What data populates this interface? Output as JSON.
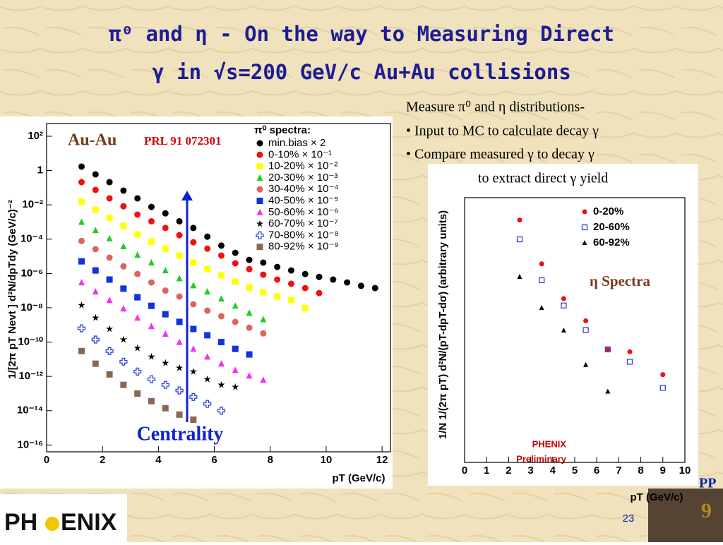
{
  "slide": {
    "title": [
      "π⁰ and η - On the way to Measuring Direct",
      "γ in √s=200 GeV/c Au+Au collisions"
    ],
    "bullets": [
      "Measure π⁰ and η distributions-",
      "•  Input to MC to calculate decay γ",
      "• Compare measured γ to decay γ",
      "to extract direct γ yield"
    ],
    "page_number": "23",
    "logo": [
      "PH",
      "ENIX"
    ],
    "corner": [
      "PP",
      "9"
    ]
  },
  "chart_data": [
    {
      "type": "scatter",
      "annotations": [
        "Au-Au",
        "PRL 91 072301",
        "Centrality"
      ],
      "legend_title": "π⁰ spectra:",
      "xlabel": "pT (GeV/c)",
      "ylabel": "1/[2π pT Nevt ] d²N/dpTdy (GeV/c)⁻²",
      "xlim": [
        0,
        12.3
      ],
      "ylim": [
        4e-17,
        550
      ],
      "ylog": true,
      "xticks": [
        0,
        2,
        4,
        6,
        8,
        10,
        12
      ],
      "yticks": [
        {
          "value": 100,
          "label": "10²"
        },
        1,
        {
          "value": 0.01,
          "label": "10⁻²"
        },
        {
          "value": 0.0001,
          "label": "10⁻⁴"
        },
        {
          "value": 1e-06,
          "label": "10⁻⁶"
        },
        {
          "value": 1e-08,
          "label": "10⁻⁸"
        },
        {
          "value": 1e-10,
          "label": "10⁻¹⁰"
        },
        {
          "value": 1e-12,
          "label": "10⁻¹²"
        },
        {
          "value": 1e-14,
          "label": "10⁻¹⁴"
        },
        {
          "value": 1e-16,
          "label": "10⁻¹⁶"
        }
      ],
      "series": [
        {
          "name": "min.bias × 2",
          "color": "#000000",
          "marker": "circle",
          "x": [
            1.25,
            1.75,
            2.25,
            2.75,
            3.25,
            3.75,
            4.25,
            4.75,
            5.25,
            5.75,
            6.25,
            6.75,
            7.25,
            7.75,
            8.25,
            8.75,
            9.25,
            9.75,
            10.25,
            10.75,
            11.25,
            11.75
          ],
          "values": [
            1.7,
            0.6,
            0.21,
            0.068,
            0.024,
            0.0076,
            0.0032,
            0.0011,
            0.00045,
            0.00014,
            4.2e-05,
            1.6e-05,
            6.2e-06,
            4.3e-06,
            2.4e-06,
            1.5e-06,
            9.3e-07,
            6.3e-07,
            4.4e-07,
            3e-07,
            1.9e-07,
            1.4e-07
          ]
        },
        {
          "name": "0-10% × 10⁻¹",
          "color": "#ee1111",
          "marker": "circle",
          "x": [
            1.25,
            1.75,
            2.25,
            2.75,
            3.25,
            3.75,
            4.25,
            4.75,
            5.25,
            5.75,
            6.25,
            6.75,
            7.25,
            7.75,
            8.25,
            8.75,
            9.25,
            9.75
          ],
          "values": [
            0.21,
            0.074,
            0.024,
            0.0083,
            0.0027,
            0.0011,
            0.00045,
            0.00017,
            6.6e-05,
            2.8e-05,
            1.1e-05,
            3.9e-06,
            1.8e-06,
            8.5e-07,
            4.4e-07,
            2.5e-07,
            1.4e-07,
            7.2e-08
          ]
        },
        {
          "name": "10-20% × 10⁻²",
          "color": "#ffff00",
          "marker": "square",
          "x": [
            1.25,
            1.75,
            2.25,
            2.75,
            3.25,
            3.75,
            4.25,
            4.75,
            5.25,
            5.75,
            6.25,
            6.75,
            7.25,
            7.75,
            8.25,
            8.75,
            9.25
          ],
          "values": [
            0.015,
            0.0052,
            0.0017,
            0.00059,
            0.00019,
            7.2e-05,
            2.8e-05,
            1.1e-05,
            4.3e-06,
            1.8e-06,
            7.8e-07,
            3.3e-07,
            1.5e-07,
            7.9e-08,
            4.5e-08,
            2.8e-08,
            9.8e-09
          ]
        },
        {
          "name": "20-30% × 10⁻³",
          "color": "#22cc22",
          "marker": "triangle",
          "x": [
            1.25,
            1.75,
            2.25,
            2.75,
            3.25,
            3.75,
            4.25,
            4.75,
            5.25,
            5.75,
            6.25,
            6.75,
            7.25,
            7.75
          ],
          "values": [
            0.001,
            0.00033,
            0.00011,
            3.8e-05,
            1.2e-05,
            4.3e-06,
            1.5e-06,
            5.2e-07,
            2e-07,
            8.7e-08,
            3.4e-08,
            1.3e-08,
            5e-09,
            2.1e-09
          ]
        },
        {
          "name": "30-40% × 10⁻⁴",
          "color": "#d9665e",
          "marker": "circle",
          "x": [
            1.25,
            1.75,
            2.25,
            2.75,
            3.25,
            3.75,
            4.25,
            4.75,
            5.25,
            5.75,
            6.25,
            6.75,
            7.25,
            7.75
          ],
          "values": [
            7.9e-05,
            2.6e-05,
            8.3e-06,
            2.6e-06,
            9.3e-07,
            3e-07,
            1e-07,
            4.5e-08,
            1.6e-08,
            6.8e-09,
            3.2e-09,
            1.5e-09,
            6.9e-10,
            3.2e-10
          ]
        },
        {
          "name": "40-50% × 10⁻⁵",
          "color": "#1133dd",
          "marker": "square",
          "x": [
            1.25,
            1.75,
            2.25,
            2.75,
            3.25,
            3.75,
            4.25,
            4.75,
            5.25,
            5.75,
            6.25,
            6.75,
            7.25
          ],
          "values": [
            5.1e-06,
            1.5e-06,
            4.4e-07,
            1.3e-07,
            4.1e-08,
            1.3e-08,
            4.2e-09,
            1.5e-09,
            5.8e-10,
            2.5e-10,
            1e-10,
            4e-11,
            1.9e-11
          ]
        },
        {
          "name": "50-60% × 10⁻⁶",
          "color": "#ee33ee",
          "marker": "triangle",
          "x": [
            1.25,
            1.75,
            2.25,
            2.75,
            3.25,
            3.75,
            4.25,
            4.75,
            5.25,
            5.75,
            6.25,
            6.75,
            7.25,
            7.75
          ],
          "values": [
            3e-07,
            8.7e-08,
            2.8e-08,
            8.9e-09,
            2.6e-09,
            8.3e-10,
            3e-10,
            1e-10,
            4e-11,
            1.4e-11,
            5.5e-12,
            2.3e-12,
            1.1e-12,
            6.2e-13
          ]
        },
        {
          "name": "60-70% × 10⁻⁷",
          "color": "#000000",
          "marker": "star",
          "x": [
            1.25,
            1.75,
            2.25,
            2.75,
            3.25,
            3.75,
            4.25,
            4.75,
            5.25,
            5.75,
            6.25,
            6.75
          ],
          "values": [
            1.4e-08,
            2.6e-09,
            5.8e-10,
            1.4e-10,
            4.4e-11,
            1.4e-11,
            6e-12,
            3.1e-12,
            1.9e-12,
            6.8e-13,
            3.2e-13,
            2.4e-13
          ]
        },
        {
          "name": "70-80% × 10⁻⁸",
          "color": "#3344cc",
          "marker": "cross",
          "x": [
            1.25,
            1.75,
            2.25,
            2.75,
            3.25,
            3.75,
            4.25,
            4.75,
            5.25,
            5.75,
            6.25
          ],
          "values": [
            6.3e-10,
            1.4e-10,
            3e-11,
            7.2e-12,
            1.9e-12,
            6.8e-13,
            3.2e-13,
            1.5e-13,
            6.3e-14,
            2.5e-14,
            1e-14
          ]
        },
        {
          "name": "80-92% × 10⁻⁹",
          "color": "#8b6655",
          "marker": "square",
          "x": [
            1.25,
            1.75,
            2.25,
            2.75,
            3.25,
            3.75,
            4.25,
            4.75,
            5.25
          ],
          "values": [
            3e-11,
            5.5e-12,
            1.3e-12,
            3.2e-13,
            1e-13,
            3.6e-14,
            1.4e-14,
            5.9e-15,
            3e-15
          ]
        }
      ]
    },
    {
      "type": "scatter",
      "annotations": [
        "η Spectra",
        "PHENIX",
        "Preliminary"
      ],
      "xlabel": "pT  (GeV/c)",
      "ylabel": "1/N 1/(2π pT) d²N/(pT-dpT-dσ) (arbitrary units)",
      "xlim": [
        0,
        10
      ],
      "ylim": [
        1e-08,
        1
      ],
      "ylog": true,
      "xticks": [
        0,
        1,
        2,
        3,
        4,
        5,
        6,
        7,
        8,
        9,
        10
      ],
      "series": [
        {
          "name": "0-20%",
          "color": "#ee1111",
          "marker": "circle",
          "x": [
            2.5,
            3.5,
            4.5,
            5.5,
            6.5,
            7.5,
            9
          ],
          "values": [
            0.21,
            0.01,
            0.00089,
            0.00019,
            2.6e-05,
            2.2e-05,
            4.5e-06
          ]
        },
        {
          "name": "20-60%",
          "color": "#3344cc",
          "marker": "open-square",
          "x": [
            2.5,
            3.5,
            4.5,
            5.5,
            6.5,
            7.5,
            9
          ],
          "values": [
            0.055,
            0.0032,
            0.00055,
            0.0001,
            2.6e-05,
            1.1e-05,
            1.8e-06
          ]
        },
        {
          "name": "60-92%",
          "color": "#000000",
          "marker": "triangle",
          "x": [
            2.5,
            3.5,
            4.5,
            5.5,
            6.5
          ],
          "values": [
            0.0041,
            0.00047,
            9.8e-05,
            8.9e-06,
            1.4e-06
          ]
        }
      ]
    }
  ]
}
